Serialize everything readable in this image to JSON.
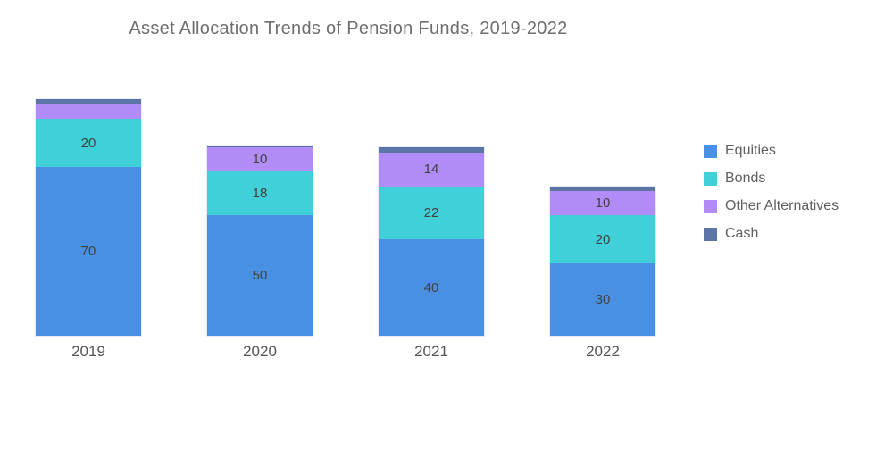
{
  "chart_data": {
    "type": "bar",
    "stacked": true,
    "orientation": "vertical",
    "title": "Asset Allocation Trends of Pension Funds, 2019-2022",
    "categories": [
      "2019",
      "2020",
      "2021",
      "2022"
    ],
    "series": [
      {
        "name": "Equities",
        "color": "#4A90E2",
        "values": [
          70,
          50,
          40,
          30
        ]
      },
      {
        "name": "Bonds",
        "color": "#3FD0DA",
        "values": [
          20,
          18,
          22,
          20
        ]
      },
      {
        "name": "Other Alternatives",
        "color": "#B18CF7",
        "values": [
          6,
          10,
          14,
          10
        ]
      },
      {
        "name": "Cash",
        "color": "#5C74A6",
        "values": [
          2,
          1,
          2,
          2
        ]
      }
    ],
    "value_label_min": 10,
    "legend_position": "middle-right",
    "grid": false,
    "axes_shown": false,
    "background_color": "#FFFFFF",
    "title_color": "#6F6F6F",
    "value_label_color": "#414141",
    "axis_label_color": "#555555",
    "legend_text_color": "#5F5F5F"
  }
}
